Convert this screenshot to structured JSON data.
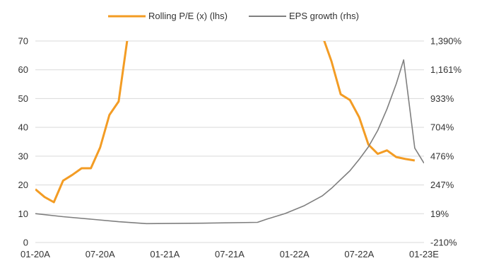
{
  "chart_data": {
    "type": "line",
    "legend_position": "top-center",
    "grid": "horizontal",
    "x_ticks": [
      "01-20A",
      "07-20A",
      "01-21A",
      "07-21A",
      "01-22A",
      "07-22A",
      "01-23E"
    ],
    "y_left": {
      "min": 0,
      "max": 70,
      "ticks": [
        "0",
        "10",
        "20",
        "30",
        "40",
        "50",
        "60",
        "70"
      ]
    },
    "y_right": {
      "min": -210,
      "max": 1390,
      "ticks": [
        "-210%",
        "19%",
        "247%",
        "476%",
        "704%",
        "933%",
        "1,161%",
        "1,390%"
      ]
    },
    "series": [
      {
        "name": "Rolling P/E (x) (lhs)",
        "axis": "left",
        "color": "#f39c24",
        "points": [
          [
            0,
            18.5
          ],
          [
            1,
            15.8
          ],
          [
            2,
            14.0
          ],
          [
            3,
            21.5
          ],
          [
            4,
            23.5
          ],
          [
            5,
            25.8
          ],
          [
            6,
            25.8
          ],
          [
            7,
            33.0
          ],
          [
            8,
            44.3
          ],
          [
            9,
            49.0
          ],
          [
            10,
            72.0
          ],
          [
            11,
            99
          ],
          [
            30,
            99
          ],
          [
            31,
            72.0
          ],
          [
            32,
            63.0
          ],
          [
            33,
            51.5
          ],
          [
            34,
            49.5
          ],
          [
            35,
            43.5
          ],
          [
            36,
            34.0
          ],
          [
            37,
            30.8
          ],
          [
            38,
            32.0
          ],
          [
            39,
            29.7
          ],
          [
            40,
            29.0
          ],
          [
            41,
            28.5
          ]
        ]
      },
      {
        "name": "EPS growth (rhs)",
        "axis": "right",
        "color": "#7f7f7f",
        "points": [
          [
            0,
            19
          ],
          [
            3,
            -5
          ],
          [
            6,
            -25
          ],
          [
            9,
            -45
          ],
          [
            12,
            -60
          ],
          [
            18,
            -57
          ],
          [
            24,
            -50
          ],
          [
            25,
            -25
          ],
          [
            27,
            20
          ],
          [
            29,
            80
          ],
          [
            31,
            160
          ],
          [
            32,
            220
          ],
          [
            34,
            360
          ],
          [
            35,
            450
          ],
          [
            36,
            550
          ],
          [
            37,
            680
          ],
          [
            38,
            850
          ],
          [
            39,
            1050
          ],
          [
            39.8,
            1240
          ],
          [
            41,
            540
          ],
          [
            42,
            420
          ]
        ]
      }
    ]
  }
}
